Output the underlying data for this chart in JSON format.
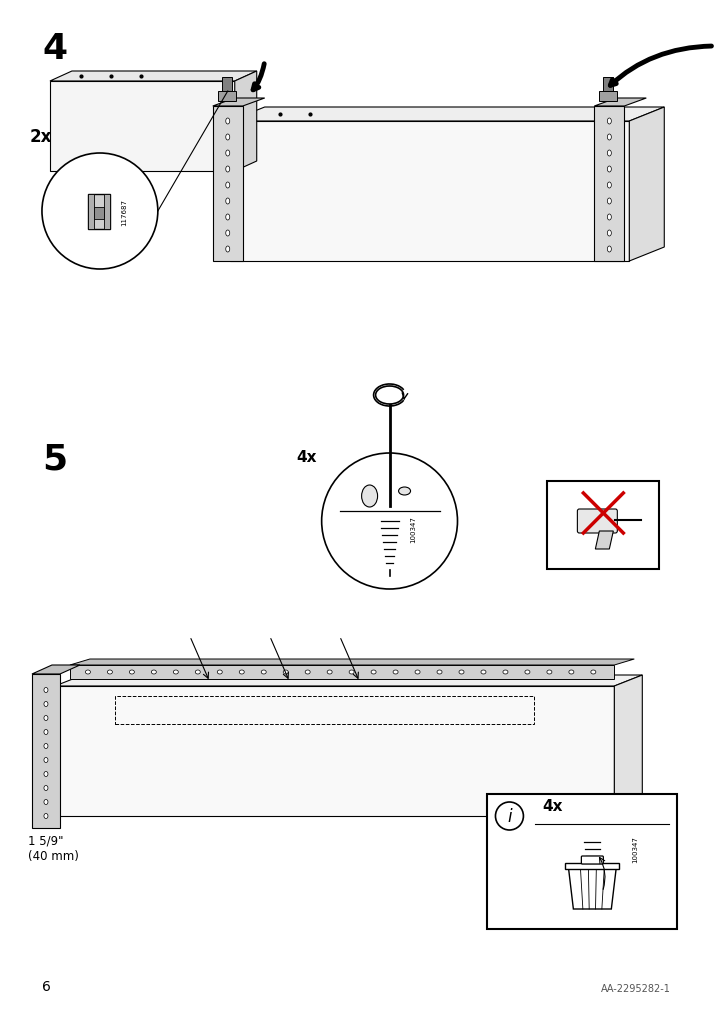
{
  "page_number": "6",
  "doc_id": "AA-2295282-1",
  "bg_color": "#ffffff",
  "line_color": "#000000",
  "step4_label": "4",
  "step5_label": "5",
  "step4_2x_label": "2x",
  "step4_part_id": "117687",
  "step5_4x_label": "4x",
  "step5_part_id": "100347",
  "step5_measurement": "1 5/9\"\n(40 mm)",
  "step5_info_4x": "4x"
}
